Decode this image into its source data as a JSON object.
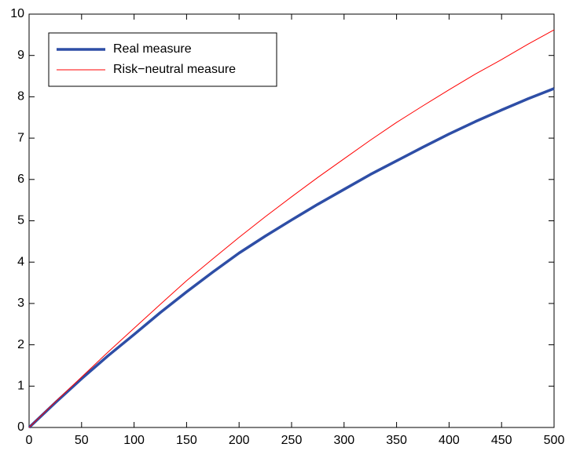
{
  "chart_data": {
    "type": "line",
    "x": [
      0,
      25,
      50,
      75,
      100,
      125,
      150,
      175,
      200,
      225,
      250,
      275,
      300,
      325,
      350,
      375,
      400,
      425,
      450,
      475,
      500
    ],
    "series": [
      {
        "name": "Real measure",
        "color": "#2e4ea6",
        "values": [
          0,
          0.6,
          1.18,
          1.73,
          2.25,
          2.78,
          3.28,
          3.76,
          4.22,
          4.63,
          5.02,
          5.4,
          5.76,
          6.12,
          6.45,
          6.78,
          7.1,
          7.4,
          7.68,
          7.95,
          8.2
        ]
      },
      {
        "name": "Risk−neutral measure",
        "color": "#ff0000",
        "values": [
          0,
          0.62,
          1.22,
          1.82,
          2.4,
          2.98,
          3.55,
          4.08,
          4.6,
          5.1,
          5.58,
          6.05,
          6.5,
          6.95,
          7.38,
          7.78,
          8.17,
          8.55,
          8.9,
          9.27,
          9.62
        ]
      }
    ],
    "xlim": [
      0,
      500
    ],
    "xticks": [
      0,
      50,
      100,
      150,
      200,
      250,
      300,
      350,
      400,
      450,
      500
    ],
    "ylim": [
      0,
      10
    ],
    "yticks": [
      0,
      1,
      2,
      3,
      4,
      5,
      6,
      7,
      8,
      9,
      10
    ],
    "grid": false,
    "legend": "upper left"
  }
}
